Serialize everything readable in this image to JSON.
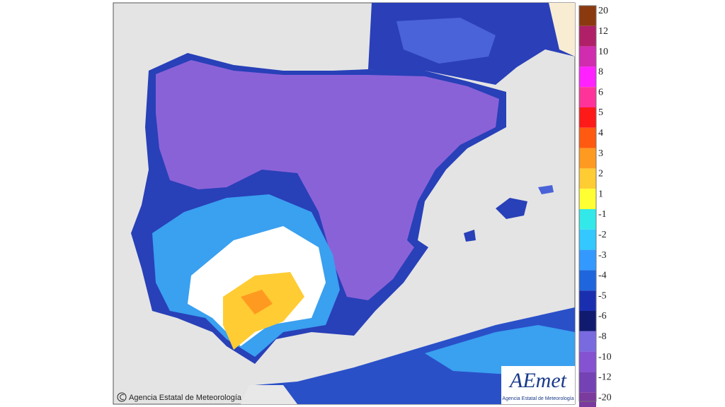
{
  "legend": {
    "warm": [
      {
        "label": "20",
        "color": "#8b3a10"
      },
      {
        "label": "12",
        "color": "#b02068"
      },
      {
        "label": "10",
        "color": "#d02cb0"
      },
      {
        "label": "8",
        "color": "#ff22ff"
      },
      {
        "label": "6",
        "color": "#ff3399"
      },
      {
        "label": "5",
        "color": "#ff1a1a"
      },
      {
        "label": "4",
        "color": "#ff5a10"
      },
      {
        "label": "3",
        "color": "#ff9a20"
      },
      {
        "label": "2",
        "color": "#ffcc33"
      },
      {
        "label": "1",
        "color": "#ffff33"
      }
    ],
    "cold": [
      {
        "label": "-1",
        "color": "#33e8e8"
      },
      {
        "label": "-2",
        "color": "#33c8ff"
      },
      {
        "label": "-3",
        "color": "#3399ff"
      },
      {
        "label": "-4",
        "color": "#1f66dd"
      },
      {
        "label": "-5",
        "color": "#1a2fb0"
      },
      {
        "label": "-6",
        "color": "#101a6e"
      },
      {
        "label": "-8",
        "color": "#7a6ae0"
      },
      {
        "label": "-10",
        "color": "#8552d2"
      },
      {
        "label": "-12",
        "color": "#7442b4"
      },
      {
        "label": "-20",
        "color": "#7a3a9e"
      }
    ]
  },
  "credit": "Agencia Estatal de Meteorología",
  "logo": {
    "name": "AEmet",
    "subtitle": "Agencia Estatal de Meteorología"
  }
}
